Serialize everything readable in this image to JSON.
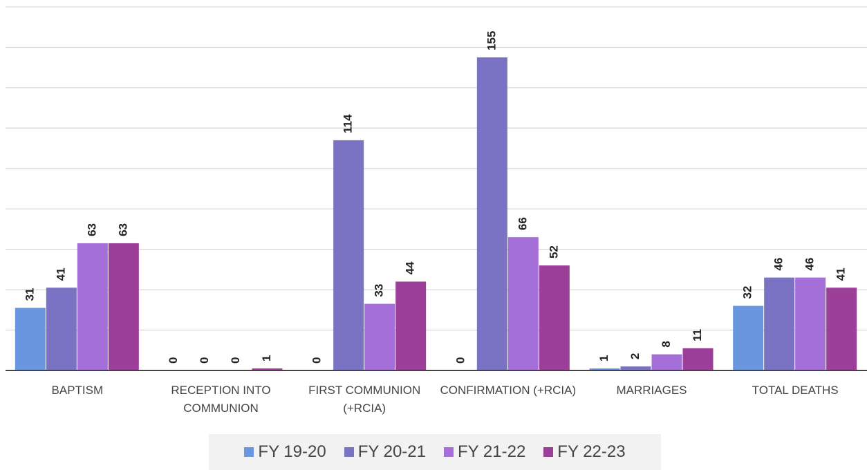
{
  "chart_data": {
    "type": "bar",
    "categories": [
      "BAPTISM",
      "RECEPTION INTO COMMUNION",
      "FIRST COMMUNION (+RCIA)",
      "CONFIRMATION (+RCIA)",
      "MARRIAGES",
      "TOTAL DEATHS"
    ],
    "series": [
      {
        "name": "FY 19-20",
        "color": "#6a96df",
        "values": [
          31,
          0,
          0,
          0,
          1,
          32
        ]
      },
      {
        "name": "FY 20-21",
        "color": "#7a72c3",
        "values": [
          41,
          0,
          114,
          155,
          2,
          46
        ]
      },
      {
        "name": "FY 21-22",
        "color": "#a46fd9",
        "values": [
          63,
          0,
          33,
          66,
          8,
          46
        ]
      },
      {
        "name": "FY 22-23",
        "color": "#9c3f99",
        "values": [
          63,
          1,
          44,
          52,
          11,
          41
        ]
      }
    ],
    "ylim": [
      0,
      180
    ],
    "yticks": [
      0,
      20,
      40,
      60,
      80,
      100,
      120,
      140,
      160,
      180
    ],
    "grid": true,
    "legend": "bottom"
  }
}
